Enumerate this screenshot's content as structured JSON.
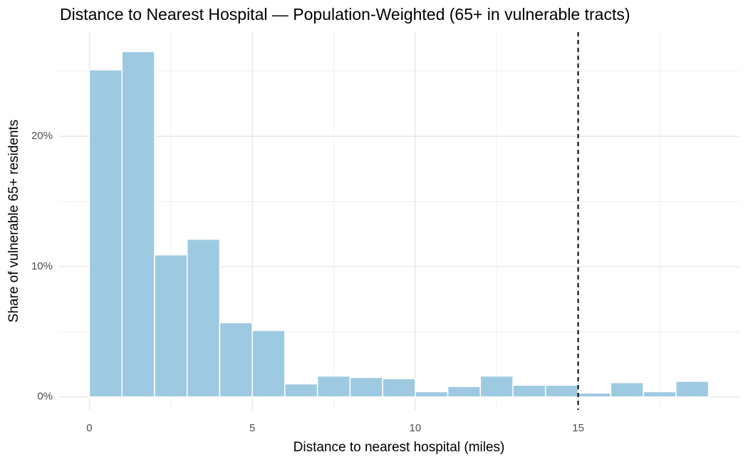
{
  "chart_data": {
    "type": "histogram",
    "title": "Distance to Nearest Hospital — Population-Weighted (65+ in vulnerable tracts)",
    "x_label": "Distance to nearest hospital (miles)",
    "y_label": "Share of vulnerable 65+ residents",
    "bins": [
      0,
      1,
      2,
      3,
      4,
      5,
      6,
      7,
      8,
      9,
      10,
      11,
      12,
      13,
      14,
      15,
      16,
      17,
      18,
      19
    ],
    "values": [
      25.1,
      26.5,
      10.9,
      12.1,
      5.7,
      5.1,
      1.0,
      1.6,
      1.5,
      1.4,
      0.4,
      0.8,
      1.6,
      0.9,
      0.9,
      0.3,
      1.1,
      0.4,
      1.2
    ],
    "color": "#9ecae1",
    "xlim": [
      -0.95,
      19.95
    ],
    "ylim": [
      -1,
      28
    ],
    "xticks": [
      0,
      5,
      10,
      15
    ],
    "x_minor_ticks": [
      2.5,
      7.5,
      12.5,
      17.5
    ],
    "yticks": [
      {
        "value": 0,
        "label": "0%"
      },
      {
        "value": 10,
        "label": "10%"
      },
      {
        "value": 20,
        "label": "20%"
      }
    ],
    "y_minor_ticks": [
      5,
      15,
      25
    ],
    "vline": 15,
    "grid": true
  }
}
